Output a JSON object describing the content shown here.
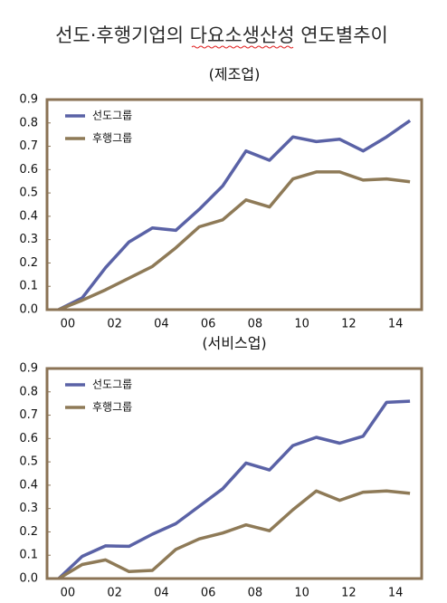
{
  "title": "선도·후행기업의 다요소생산성 연도별추이",
  "chart_data": [
    {
      "type": "line",
      "title": "(제조업)",
      "categories": [
        "00",
        null,
        "02",
        null,
        "04",
        null,
        "06",
        null,
        "08",
        null,
        "10",
        null,
        "12",
        null,
        "14",
        null
      ],
      "series": [
        {
          "name": "선도그룹",
          "color": "#5a62a6",
          "values": [
            0,
            0.05,
            0.18,
            0.29,
            0.35,
            0.34,
            0.43,
            0.53,
            0.68,
            0.64,
            0.74,
            0.72,
            0.73,
            0.68,
            0.74,
            0.81
          ]
        },
        {
          "name": "후행그룹",
          "color": "#8e7a57",
          "values": [
            0,
            0.04,
            0.085,
            0.135,
            0.185,
            0.265,
            0.355,
            0.385,
            0.47,
            0.44,
            0.56,
            0.59,
            0.59,
            0.555,
            0.56,
            0.548
          ]
        }
      ],
      "ylim": [
        0,
        0.9
      ],
      "yticks": [
        {
          "value": 0,
          "label": "0.0"
        },
        0.1,
        0.2,
        0.3,
        0.4,
        0.5,
        0.6,
        0.7,
        0.8,
        0.9
      ],
      "legend": "upper left",
      "grid": false
    },
    {
      "type": "line",
      "title": "(서비스업)",
      "categories": [
        "00",
        null,
        "02",
        null,
        "04",
        null,
        "06",
        null,
        "08",
        null,
        "10",
        null,
        "12",
        null,
        "14",
        null
      ],
      "series": [
        {
          "name": "선도그룹",
          "color": "#5a62a6",
          "values": [
            0,
            0.095,
            0.14,
            0.138,
            0.19,
            0.235,
            0.31,
            0.385,
            0.495,
            0.465,
            0.57,
            0.605,
            0.58,
            0.61,
            0.755,
            0.76
          ]
        },
        {
          "name": "후행그룹",
          "color": "#8e7a57",
          "values": [
            0,
            0.06,
            0.08,
            0.03,
            0.035,
            0.125,
            0.17,
            0.195,
            0.23,
            0.205,
            0.295,
            0.375,
            0.335,
            0.37,
            0.375,
            0.365
          ]
        }
      ],
      "ylim": [
        0,
        0.9
      ],
      "yticks": [
        {
          "value": 0,
          "label": "0.0"
        },
        0.1,
        0.2,
        0.3,
        0.4,
        0.5,
        0.6,
        0.7,
        0.8,
        0.9
      ],
      "legend": "upper left",
      "grid": false
    }
  ]
}
